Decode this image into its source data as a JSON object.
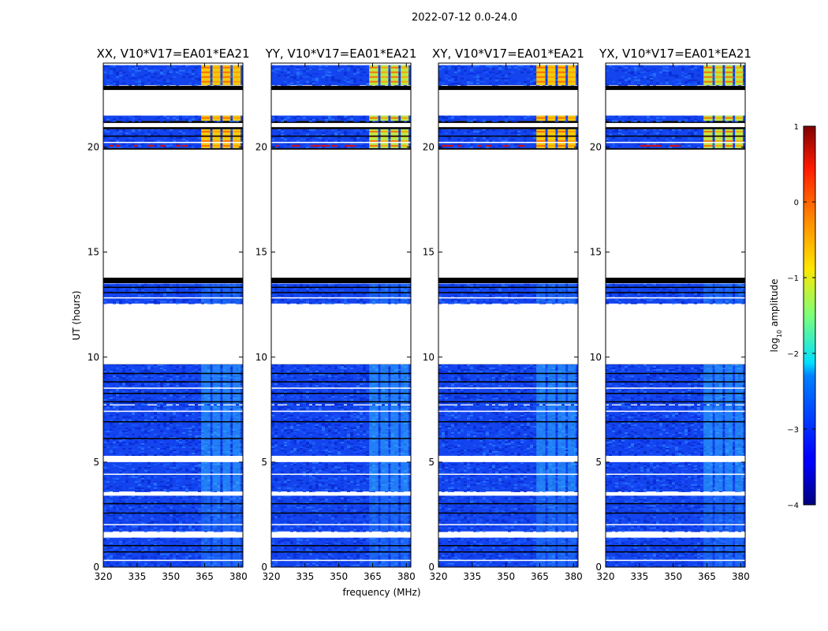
{
  "chart_data": {
    "type": "heatmap",
    "suptitle": "2022-07-12 0.0-24.0",
    "xlabel": "frequency (MHz)",
    "ylabel": "UT (hours)",
    "xlim": [
      320,
      382
    ],
    "ylim": [
      0,
      24
    ],
    "xticks": [
      "320",
      "335",
      "350",
      "365",
      "380"
    ],
    "yticks": [
      "0",
      "5",
      "10",
      "15",
      "20"
    ],
    "panels": [
      {
        "title": "XX, V10*V17=EA01*EA21"
      },
      {
        "title": "YY, V10*V17=EA01*EA21"
      },
      {
        "title": "XY, V10*V17=EA01*EA21"
      },
      {
        "title": "YX, V10*V17=EA01*EA21"
      }
    ],
    "colorbar": {
      "label_prefix": "log",
      "label_sub": "10",
      "label_suffix": " amplitude",
      "range": [
        -4,
        1
      ],
      "ticks": [
        "1",
        "0",
        "−1",
        "−2",
        "−3",
        "−4"
      ],
      "colormap": "jet"
    },
    "data_blocks_ut_hours": [
      [
        0.0,
        1.4
      ],
      [
        1.7,
        3.4
      ],
      [
        3.6,
        5.0
      ],
      [
        5.3,
        7.7
      ],
      [
        7.75,
        9.65
      ],
      [
        12.55,
        13.5
      ],
      [
        19.95,
        20.85
      ],
      [
        21.25,
        21.5
      ],
      [
        22.95,
        23.9
      ]
    ],
    "flagged_rows_ut_hours": [
      0.35,
      0.75,
      1.05,
      2.05,
      2.6,
      3.05,
      4.45,
      6.15,
      6.95,
      7.45,
      7.9,
      8.3,
      8.55,
      8.85,
      9.25,
      12.85,
      13.1,
      13.35,
      20.25,
      20.55
    ],
    "bright_band_channels_MHz": [
      [
        363.5,
        367.5
      ],
      [
        368.5,
        372
      ],
      [
        373,
        376.5
      ],
      [
        377.5,
        381
      ]
    ]
  }
}
